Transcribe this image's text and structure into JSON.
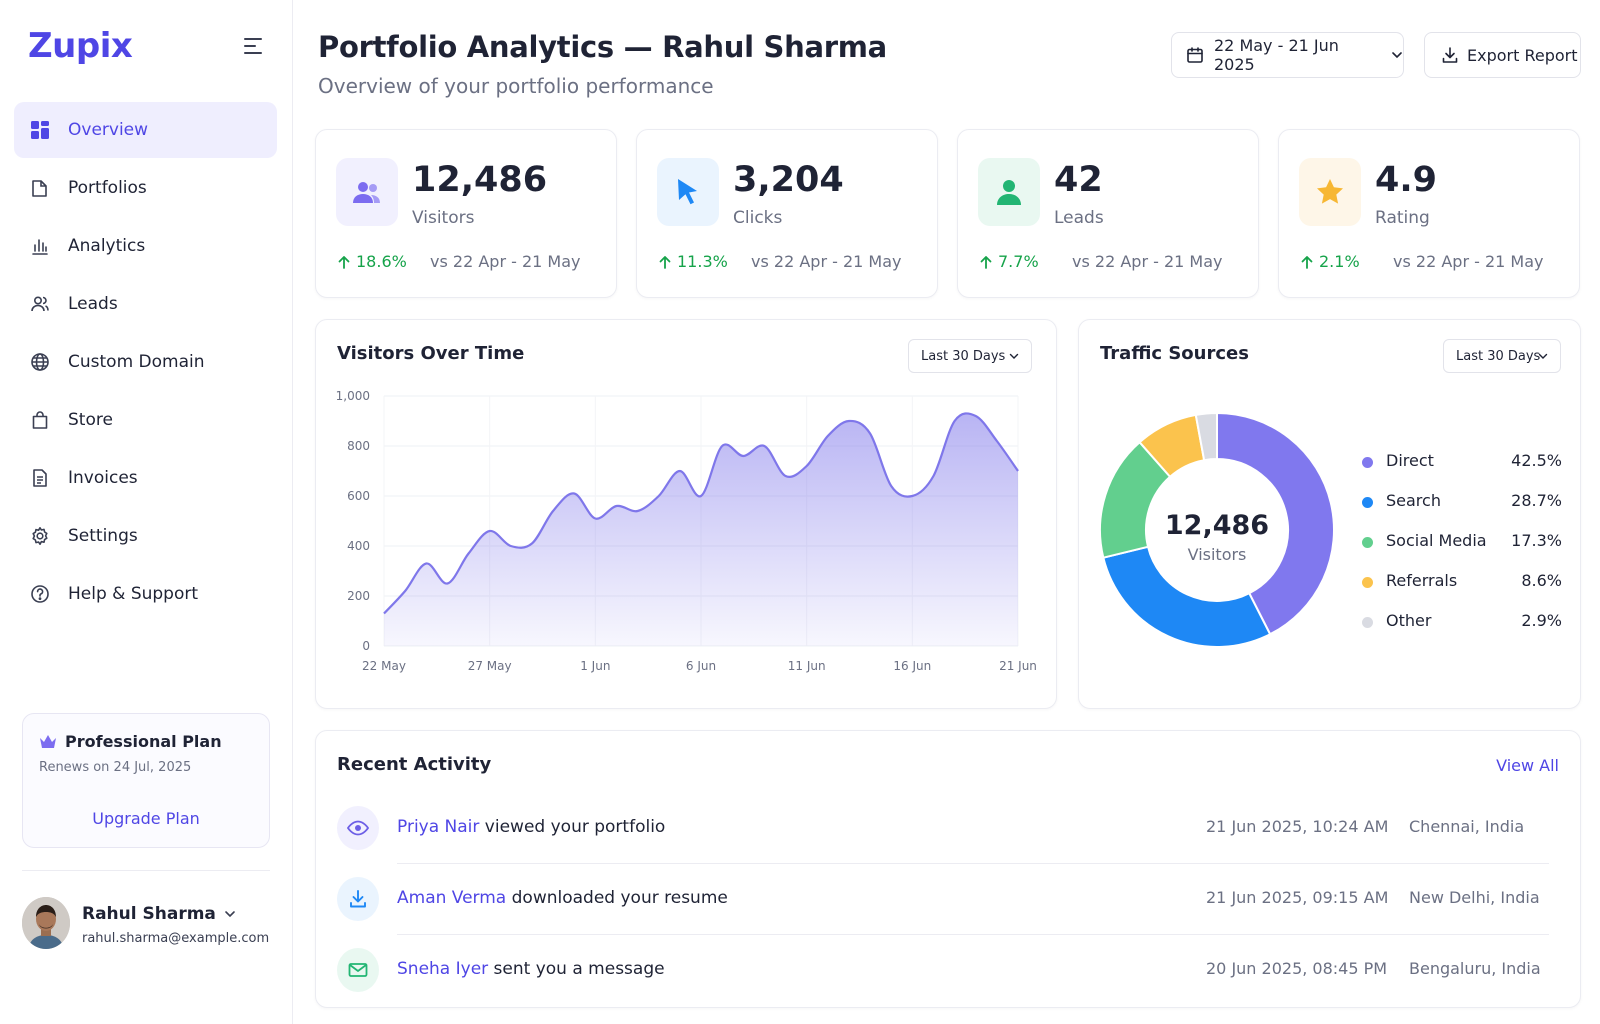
{
  "app": {
    "logo": "Zupix"
  },
  "sidebar": {
    "items": [
      {
        "label": "Overview",
        "icon": "grid-icon",
        "active": true
      },
      {
        "label": "Portfolios",
        "icon": "file-icon"
      },
      {
        "label": "Analytics",
        "icon": "bar-chart-icon"
      },
      {
        "label": "Leads",
        "icon": "users-icon"
      },
      {
        "label": "Custom Domain",
        "icon": "globe-icon"
      },
      {
        "label": "Store",
        "icon": "shopping-bag-icon"
      },
      {
        "label": "Invoices",
        "icon": "invoice-icon"
      },
      {
        "label": "Settings",
        "icon": "gear-icon"
      },
      {
        "label": "Help & Support",
        "icon": "help-icon"
      }
    ],
    "plan": {
      "title": "Professional Plan",
      "renews": "Renews on 24 Jul, 2025",
      "upgrade_label": "Upgrade Plan"
    },
    "user": {
      "name": "Rahul Sharma",
      "email": "rahul.sharma@example.com"
    }
  },
  "header": {
    "title": "Portfolio Analytics — Rahul Sharma",
    "subtitle": "Overview of your portfolio performance",
    "date_range": "22 May - 21 Jun 2025",
    "export_label": "Export Report"
  },
  "stats": [
    {
      "value": "12,486",
      "label": "Visitors",
      "change": "18.6%",
      "compare": "vs 22 Apr - 21 May",
      "icon": "users-icon",
      "color": "#7c6cf0",
      "bg": "#f1f0fe"
    },
    {
      "value": "3,204",
      "label": "Clicks",
      "change": "11.3%",
      "compare": "vs 22 Apr - 21 May",
      "icon": "cursor-icon",
      "color": "#1e88f5",
      "bg": "#eaf4fe"
    },
    {
      "value": "42",
      "label": "Leads",
      "change": "7.7%",
      "compare": "vs 22 Apr - 21 May",
      "icon": "user-icon",
      "color": "#22b573",
      "bg": "#e9f8f1"
    },
    {
      "value": "4.9",
      "label": "Rating",
      "change": "2.1%",
      "compare": "vs 22 Apr - 21 May",
      "icon": "star-icon",
      "color": "#f7b733",
      "bg": "#fef6e8"
    }
  ],
  "visitors_panel": {
    "title": "Visitors Over Time",
    "range": "Last 30 Days"
  },
  "traffic_panel": {
    "title": "Traffic Sources",
    "range": "Last 30 Days",
    "center_value": "12,486",
    "center_label": "Visitors"
  },
  "chart_data": [
    {
      "type": "area",
      "title": "Visitors Over Time",
      "xlabel": "",
      "ylabel": "",
      "ylim": [
        0,
        1000
      ],
      "yticks": [
        "0",
        "200",
        "400",
        "600",
        "800",
        "1,000"
      ],
      "xticks": [
        "22 May",
        "27 May",
        "1 Jun",
        "6 Jun",
        "11 Jun",
        "16 Jun",
        "21 Jun"
      ],
      "grid": true,
      "color": "#7f77ea",
      "x": [
        "22 May",
        "23 May",
        "24 May",
        "25 May",
        "26 May",
        "27 May",
        "28 May",
        "29 May",
        "30 May",
        "31 May",
        "1 Jun",
        "2 Jun",
        "3 Jun",
        "4 Jun",
        "5 Jun",
        "6 Jun",
        "7 Jun",
        "8 Jun",
        "9 Jun",
        "10 Jun",
        "11 Jun",
        "12 Jun",
        "13 Jun",
        "14 Jun",
        "15 Jun",
        "16 Jun",
        "17 Jun",
        "18 Jun",
        "19 Jun",
        "20 Jun",
        "21 Jun"
      ],
      "values": [
        130,
        220,
        330,
        250,
        370,
        460,
        400,
        410,
        540,
        610,
        510,
        560,
        540,
        600,
        700,
        600,
        800,
        760,
        800,
        680,
        720,
        840,
        900,
        850,
        640,
        600,
        680,
        900,
        920,
        820,
        700
      ]
    },
    {
      "type": "pie",
      "title": "Traffic Sources",
      "donut": true,
      "legend": "right",
      "categories": [
        "Direct",
        "Search",
        "Social Media",
        "Referrals",
        "Other"
      ],
      "values": [
        42.5,
        28.7,
        17.3,
        8.6,
        2.9
      ],
      "labels": [
        "42.5%",
        "28.7%",
        "17.3%",
        "8.6%",
        "2.9%"
      ],
      "colors": [
        "#8078ee",
        "#1e88f5",
        "#62cf8e",
        "#fbc34d",
        "#d9dbe2"
      ]
    }
  ],
  "activity": {
    "title": "Recent Activity",
    "view_all": "View All",
    "rows": [
      {
        "name": "Priya Nair",
        "action": " viewed your portfolio",
        "time": "21 Jun 2025, 10:24 AM",
        "location": "Chennai, India",
        "icon": "eye-icon",
        "color": "#6d5fe6",
        "bg": "#f1f0fe"
      },
      {
        "name": "Aman Verma",
        "action": " downloaded your resume",
        "time": "21 Jun 2025, 09:15 AM",
        "location": "New Delhi, India",
        "icon": "download-icon",
        "color": "#1e88f5",
        "bg": "#eaf4fe"
      },
      {
        "name": "Sneha Iyer",
        "action": " sent you a message",
        "time": "20 Jun 2025, 08:45 PM",
        "location": "Bengaluru, India",
        "icon": "mail-icon",
        "color": "#22b573",
        "bg": "#e9f8f1"
      }
    ]
  }
}
